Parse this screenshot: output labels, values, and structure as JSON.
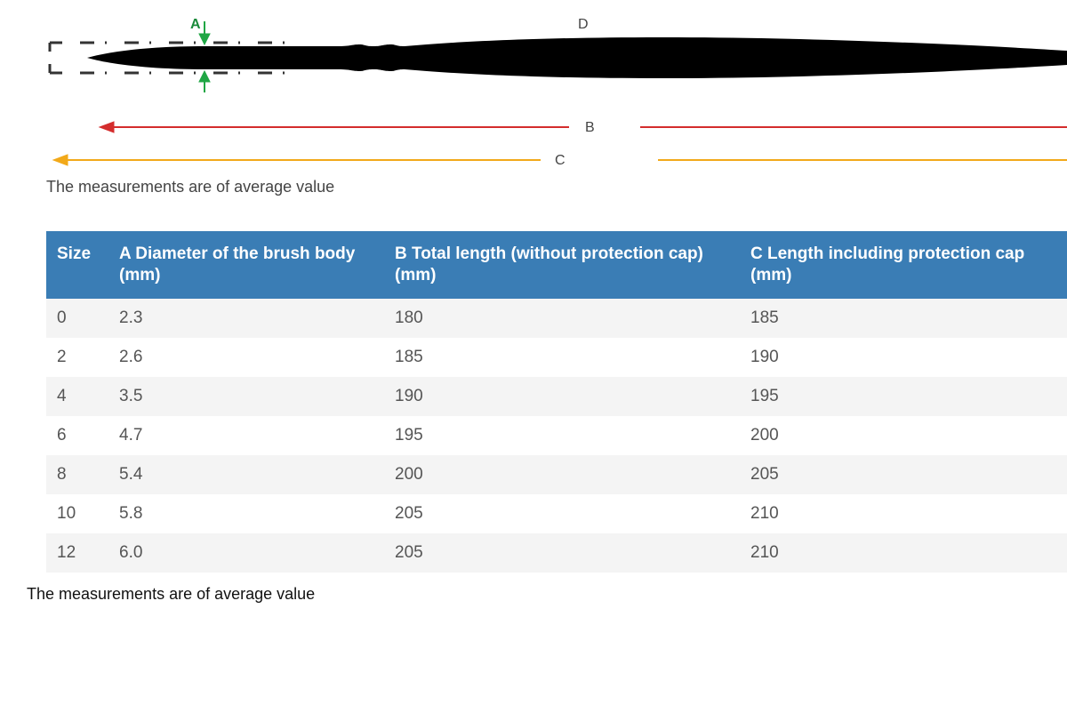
{
  "diagram": {
    "labels": {
      "A": "A",
      "B": "B",
      "C": "C",
      "D": "D"
    },
    "colors": {
      "brush": "#000000",
      "a_marker": "#1fa644",
      "b_line": "#d42d2d",
      "c_line": "#f2a91a",
      "cap_dash": "#333333",
      "label_text": "#444444"
    },
    "note_top": "The measurements are of average value"
  },
  "table": {
    "header_bg": "#3a7db5",
    "row_odd_bg": "#f4f4f4",
    "row_even_bg": "#ffffff",
    "columns": [
      "Size",
      "A Diameter of the brush body (mm)",
      "B Total length (without protection cap) (mm)",
      "C Length including protection cap (mm)"
    ],
    "rows": [
      [
        "0",
        "2.3",
        "180",
        "185"
      ],
      [
        "2",
        "2.6",
        "185",
        "190"
      ],
      [
        "4",
        "3.5",
        "190",
        "195"
      ],
      [
        "6",
        "4.7",
        "195",
        "200"
      ],
      [
        "8",
        "5.4",
        "200",
        "205"
      ],
      [
        "10",
        "5.8",
        "205",
        "210"
      ],
      [
        "12",
        "6.0",
        "205",
        "210"
      ]
    ]
  },
  "note_bottom": "The measurements are of average value"
}
